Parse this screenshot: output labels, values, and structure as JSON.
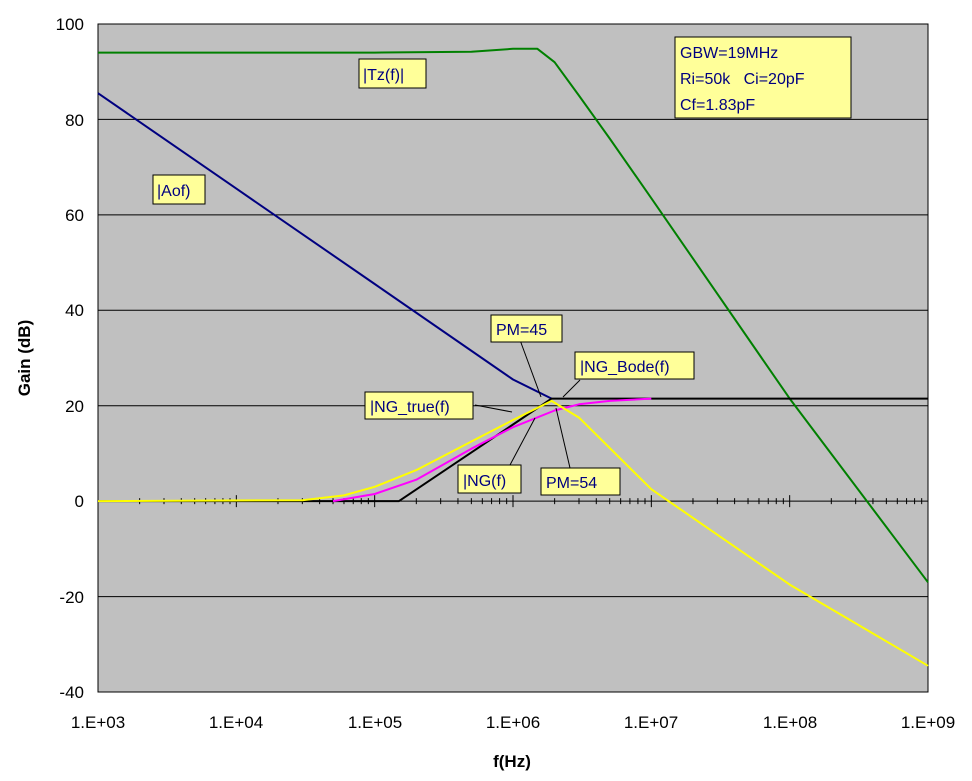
{
  "chart_data": {
    "type": "line",
    "xlabel": "f(Hz)",
    "ylabel": "Gain (dB)",
    "x_scale": "log",
    "xlim": [
      1000,
      1000000000
    ],
    "ylim": [
      -40,
      100
    ],
    "x_tick_labels": [
      "1.E+03",
      "1.E+04",
      "1.E+05",
      "1.E+06",
      "1.E+07",
      "1.E+08",
      "1.E+09"
    ],
    "y_tick_labels": [
      "-40",
      "-20",
      "0",
      "20",
      "40",
      "60",
      "80",
      "100"
    ],
    "grid": "horizontal",
    "colors": {
      "plot_bg": "#c0c0c0",
      "tz": "#008000",
      "aof": "#000080",
      "ng_bode": "#000000",
      "ng": "#ff00ff",
      "ng_true": "#ffff00",
      "label_bg": "#ffff99",
      "label_text": "#000080"
    },
    "series": [
      {
        "key": "tz",
        "x": [
          1000,
          10000,
          100000,
          500000,
          1000000,
          1500000,
          2000000,
          3000000,
          5000000,
          10000000,
          100000000,
          1000000000
        ],
        "y": [
          94,
          94,
          94,
          94.2,
          94.8,
          94.8,
          92,
          85,
          76,
          63.5,
          21.5,
          -17
        ]
      },
      {
        "key": "aof",
        "x": [
          1000,
          10000,
          100000,
          1000000,
          1900000
        ],
        "y": [
          85.5,
          65.5,
          45.5,
          25.5,
          21.5
        ]
      },
      {
        "key": "ng_bode",
        "x": [
          1000,
          150000,
          1900000,
          10000000,
          1000000000
        ],
        "y": [
          0,
          0,
          21.5,
          21.5,
          21.5
        ]
      },
      {
        "key": "ng",
        "x": [
          50000,
          100000,
          200000,
          500000,
          1000000,
          2000000,
          3000000,
          5000000,
          10000000
        ],
        "y": [
          0,
          1.5,
          4.5,
          11,
          15.5,
          19,
          20.3,
          21,
          21.5
        ]
      },
      {
        "key": "ng_true",
        "x": [
          1000,
          30000,
          60000,
          100000,
          200000,
          500000,
          1000000,
          1900000,
          3000000,
          10000000,
          100000000,
          1000000000
        ],
        "y": [
          0,
          0.2,
          1.2,
          3,
          6.5,
          12.5,
          17,
          21,
          17.5,
          2.5,
          -17.5,
          -34.5
        ]
      }
    ],
    "annotations": {
      "info_line1": "GBW=19MHz",
      "info_line2": "Ri=50k   Ci=20pF",
      "info_line3": "Cf=1.83pF",
      "tz": "|Tz(f)|",
      "aof": "|Aof)",
      "pm45": "PM=45",
      "ng_bode": "|NG_Bode(f)",
      "ng_true": "|NG_true(f)",
      "ng": "|NG(f)",
      "pm54": "PM=54"
    }
  }
}
